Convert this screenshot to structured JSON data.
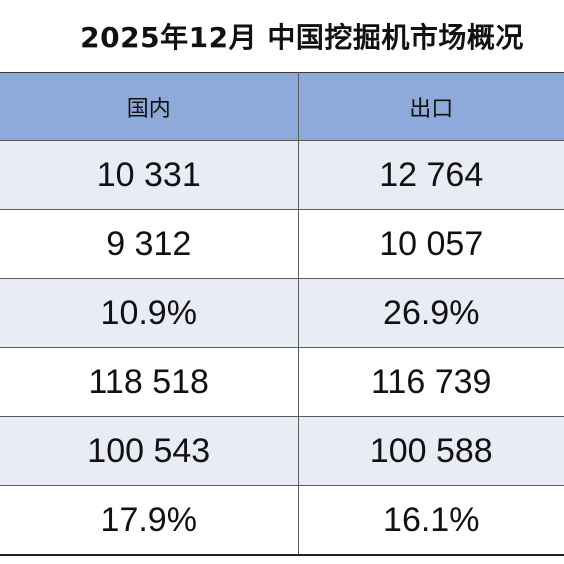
{
  "title": "2025年12月 中国挖掘机市场概况",
  "table": {
    "headers": [
      "国内",
      "出口"
    ],
    "rows": [
      [
        "10 331",
        "12 764"
      ],
      [
        "9 312",
        "10 057"
      ],
      [
        "10.9%",
        "26.9%"
      ],
      [
        "118 518",
        "116 739"
      ],
      [
        "100 543",
        "100 588"
      ],
      [
        "17.9%",
        "16.1%"
      ]
    ]
  },
  "colors": {
    "header_fill": "#8eaadb",
    "shaded_row_fill": "#e9ebf5",
    "plain_row_fill": "#ffffff"
  }
}
